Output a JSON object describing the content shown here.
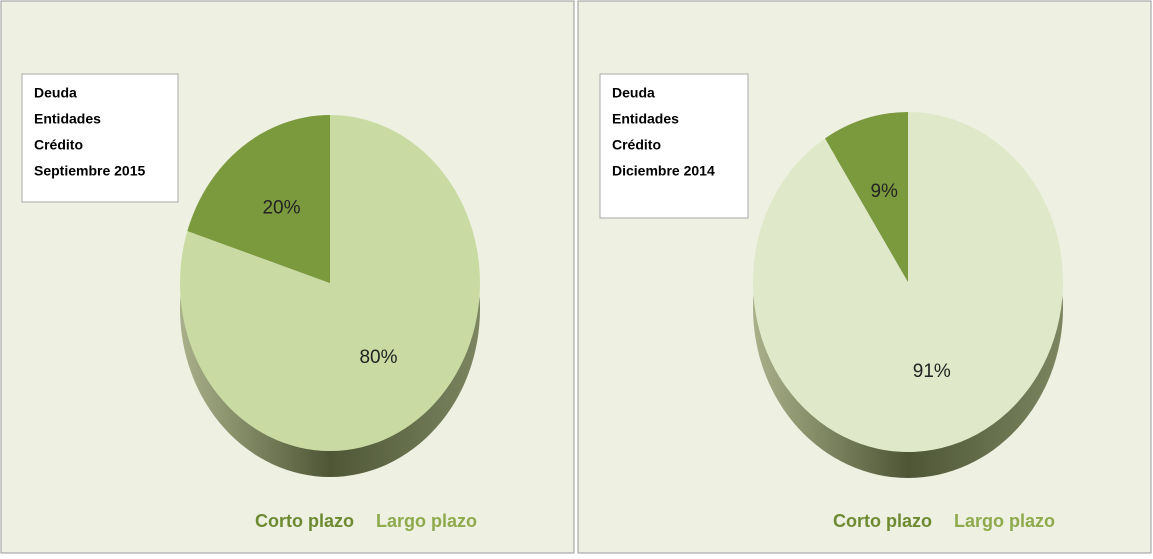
{
  "chart_data": [
    {
      "type": "pie",
      "title": [
        "Deuda",
        "Entidades",
        "Crédito",
        "Septiembre 2015"
      ],
      "categories": [
        "Corto plazo",
        "Largo plazo"
      ],
      "values": [
        20,
        80
      ],
      "value_labels": [
        "20%",
        "80%"
      ],
      "colors": [
        "#7b9a3e",
        "#c9dba2"
      ],
      "legend": "bottom"
    },
    {
      "type": "pie",
      "title": [
        "Deuda",
        "Entidades",
        "Crédito",
        "Diciembre 2014"
      ],
      "categories": [
        "Corto plazo",
        "Largo plazo"
      ],
      "values": [
        9,
        91
      ],
      "value_labels": [
        "9%",
        "91%"
      ],
      "colors": [
        "#7b9a3e",
        "#dfe9c9"
      ],
      "legend": "bottom"
    }
  ]
}
